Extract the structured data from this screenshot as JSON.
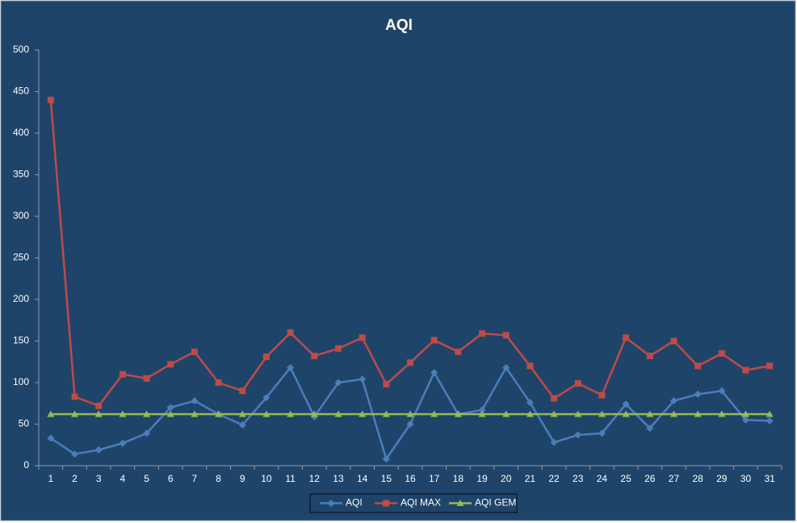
{
  "chart_data": {
    "type": "line",
    "title": "AQI",
    "categories": [
      "1",
      "2",
      "3",
      "4",
      "5",
      "6",
      "7",
      "8",
      "9",
      "10",
      "11",
      "12",
      "13",
      "14",
      "15",
      "16",
      "17",
      "18",
      "19",
      "20",
      "21",
      "22",
      "23",
      "24",
      "25",
      "26",
      "27",
      "28",
      "29",
      "30",
      "31"
    ],
    "series": [
      {
        "name": "AQI",
        "color": "#4a7ebb",
        "marker": "diamond",
        "values": [
          33,
          14,
          19,
          27,
          39,
          70,
          78,
          62,
          49,
          82,
          118,
          59,
          100,
          104,
          8,
          50,
          112,
          62,
          67,
          118,
          76,
          28,
          37,
          39,
          74,
          45,
          78,
          86,
          90,
          55,
          54
        ]
      },
      {
        "name": "AQI MAX",
        "color": "#be4b48",
        "marker": "square",
        "values": [
          440,
          83,
          72,
          110,
          105,
          122,
          137,
          100,
          90,
          131,
          160,
          132,
          141,
          154,
          98,
          124,
          151,
          137,
          159,
          157,
          120,
          81,
          99,
          85,
          154,
          132,
          150,
          120,
          135,
          115,
          120
        ]
      },
      {
        "name": "AQI GEM",
        "color": "#98b954",
        "marker": "triangle",
        "values": [
          62,
          62,
          62,
          62,
          62,
          62,
          62,
          62,
          62,
          62,
          62,
          62,
          62,
          62,
          62,
          62,
          62,
          62,
          62,
          62,
          62,
          62,
          62,
          62,
          62,
          62,
          62,
          62,
          62,
          62,
          62
        ]
      }
    ],
    "ylim": [
      0,
      500
    ],
    "yticks": [
      0,
      50,
      100,
      150,
      200,
      250,
      300,
      350,
      400,
      450,
      500
    ],
    "grid": false,
    "legend": "bottom"
  }
}
